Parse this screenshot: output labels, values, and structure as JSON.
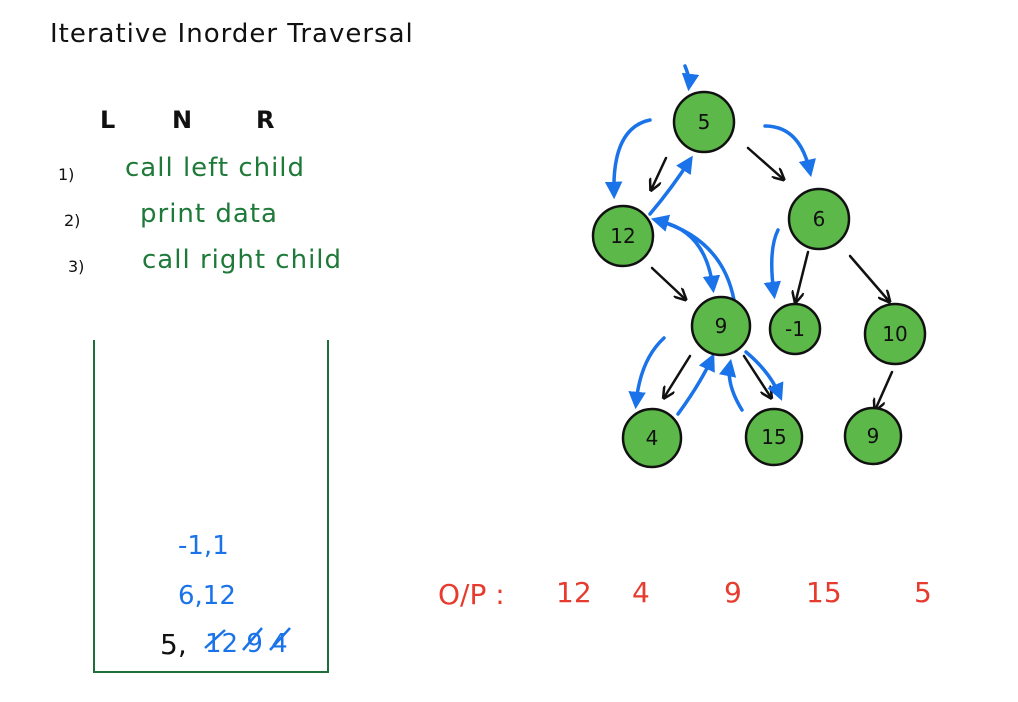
{
  "title": "Iterative Inorder Traversal",
  "order_labels": [
    "L",
    "N",
    "R"
  ],
  "steps": [
    {
      "num": "1)",
      "text": "call left child"
    },
    {
      "num": "2)",
      "text": "print data"
    },
    {
      "num": "3)",
      "text": "call right child"
    }
  ],
  "tree": {
    "nodes": [
      {
        "id": "n5",
        "label": "5"
      },
      {
        "id": "n12",
        "label": "12"
      },
      {
        "id": "n6",
        "label": "6"
      },
      {
        "id": "n9a",
        "label": "9"
      },
      {
        "id": "nm1",
        "label": "-1"
      },
      {
        "id": "n10",
        "label": "10"
      },
      {
        "id": "n4",
        "label": "4"
      },
      {
        "id": "n15",
        "label": "15"
      },
      {
        "id": "n9b",
        "label": "9"
      }
    ]
  },
  "stack": {
    "rows": [
      {
        "text": "-1,1",
        "color": "#1a73e8"
      },
      {
        "text": "6,12",
        "color": "#1a73e8"
      },
      {
        "prefix": "5,",
        "text": "12 9 4",
        "color": "#1a73e8"
      }
    ]
  },
  "output": {
    "label": "O/P :",
    "values": [
      "12",
      "4",
      "9",
      "15",
      "5"
    ]
  },
  "colors": {
    "node_fill": "#5cb848",
    "step_text": "#1f7a3a",
    "arrow_blue": "#1a73e8",
    "output_red": "#e63b2e"
  }
}
